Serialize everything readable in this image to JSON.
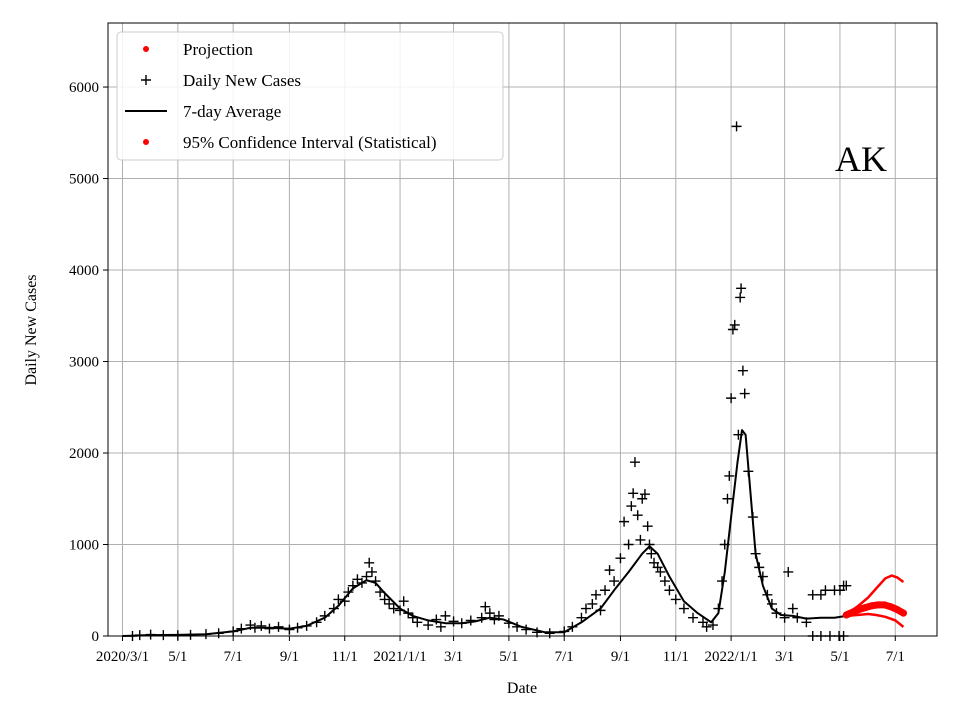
{
  "chart_data": {
    "type": "scatter",
    "title": "",
    "state_label": "AK",
    "xlabel": "Date",
    "ylabel": "Daily New Cases",
    "xlim": [
      "2020-02-14",
      "2022-08-16"
    ],
    "ylim": [
      0,
      6700
    ],
    "grid": true,
    "legend_position": "top-left",
    "x_ticks": [
      {
        "date": "2020-03-01",
        "label": "2020/3/1"
      },
      {
        "date": "2020-05-01",
        "label": "5/1"
      },
      {
        "date": "2020-07-01",
        "label": "7/1"
      },
      {
        "date": "2020-09-01",
        "label": "9/1"
      },
      {
        "date": "2020-11-01",
        "label": "11/1"
      },
      {
        "date": "2021-01-01",
        "label": "2021/1/1"
      },
      {
        "date": "2021-03-01",
        "label": "3/1"
      },
      {
        "date": "2021-05-01",
        "label": "5/1"
      },
      {
        "date": "2021-07-01",
        "label": "7/1"
      },
      {
        "date": "2021-09-01",
        "label": "9/1"
      },
      {
        "date": "2021-11-01",
        "label": "11/1"
      },
      {
        "date": "2022-01-01",
        "label": "2022/1/1"
      },
      {
        "date": "2022-03-01",
        "label": "3/1"
      },
      {
        "date": "2022-05-01",
        "label": "5/1"
      },
      {
        "date": "2022-07-01",
        "label": "7/1"
      }
    ],
    "y_ticks": [
      0,
      1000,
      2000,
      3000,
      4000,
      5000,
      6000
    ],
    "legend": [
      {
        "label": "Projection",
        "marker": "dot",
        "color": "#ff0000"
      },
      {
        "label": "Daily New Cases",
        "marker": "plus",
        "color": "#000000"
      },
      {
        "label": "7-day Average",
        "marker": "line",
        "color": "#000000"
      },
      {
        "label": "95% Confidence Interval (Statistical)",
        "marker": "dot",
        "color": "#ff0000"
      }
    ],
    "series": [
      {
        "name": "Daily New Cases",
        "marker": "plus",
        "color": "#000000",
        "points": [
          [
            "2020-03-12",
            0
          ],
          [
            "2020-03-20",
            10
          ],
          [
            "2020-04-01",
            15
          ],
          [
            "2020-04-15",
            10
          ],
          [
            "2020-05-01",
            8
          ],
          [
            "2020-05-15",
            12
          ],
          [
            "2020-06-01",
            20
          ],
          [
            "2020-06-15",
            30
          ],
          [
            "2020-07-01",
            50
          ],
          [
            "2020-07-10",
            80
          ],
          [
            "2020-07-20",
            120
          ],
          [
            "2020-07-25",
            90
          ],
          [
            "2020-08-01",
            110
          ],
          [
            "2020-08-10",
            80
          ],
          [
            "2020-08-20",
            100
          ],
          [
            "2020-09-01",
            70
          ],
          [
            "2020-09-10",
            90
          ],
          [
            "2020-09-20",
            110
          ],
          [
            "2020-10-01",
            150
          ],
          [
            "2020-10-10",
            220
          ],
          [
            "2020-10-20",
            300
          ],
          [
            "2020-10-25",
            400
          ],
          [
            "2020-11-01",
            380
          ],
          [
            "2020-11-05",
            480
          ],
          [
            "2020-11-10",
            550
          ],
          [
            "2020-11-15",
            620
          ],
          [
            "2020-11-20",
            580
          ],
          [
            "2020-11-25",
            650
          ],
          [
            "2020-11-28",
            800
          ],
          [
            "2020-12-01",
            700
          ],
          [
            "2020-12-05",
            600
          ],
          [
            "2020-12-10",
            480
          ],
          [
            "2020-12-15",
            400
          ],
          [
            "2020-12-20",
            350
          ],
          [
            "2020-12-25",
            300
          ],
          [
            "2021-01-01",
            280
          ],
          [
            "2021-01-05",
            380
          ],
          [
            "2021-01-10",
            250
          ],
          [
            "2021-01-15",
            200
          ],
          [
            "2021-01-20",
            150
          ],
          [
            "2021-02-01",
            120
          ],
          [
            "2021-02-10",
            180
          ],
          [
            "2021-02-15",
            100
          ],
          [
            "2021-02-20",
            220
          ],
          [
            "2021-03-01",
            160
          ],
          [
            "2021-03-10",
            140
          ],
          [
            "2021-03-20",
            170
          ],
          [
            "2021-04-01",
            200
          ],
          [
            "2021-04-05",
            320
          ],
          [
            "2021-04-10",
            250
          ],
          [
            "2021-04-15",
            180
          ],
          [
            "2021-04-20",
            220
          ],
          [
            "2021-05-01",
            140
          ],
          [
            "2021-05-10",
            100
          ],
          [
            "2021-05-20",
            70
          ],
          [
            "2021-06-01",
            40
          ],
          [
            "2021-06-15",
            30
          ],
          [
            "2021-07-01",
            50
          ],
          [
            "2021-07-10",
            100
          ],
          [
            "2021-07-20",
            200
          ],
          [
            "2021-07-25",
            300
          ],
          [
            "2021-08-01",
            350
          ],
          [
            "2021-08-05",
            450
          ],
          [
            "2021-08-10",
            280
          ],
          [
            "2021-08-15",
            500
          ],
          [
            "2021-08-20",
            720
          ],
          [
            "2021-08-25",
            600
          ],
          [
            "2021-09-01",
            850
          ],
          [
            "2021-09-05",
            1250
          ],
          [
            "2021-09-10",
            1000
          ],
          [
            "2021-09-13",
            1420
          ],
          [
            "2021-09-15",
            1560
          ],
          [
            "2021-09-17",
            1900
          ],
          [
            "2021-09-20",
            1320
          ],
          [
            "2021-09-23",
            1050
          ],
          [
            "2021-09-25",
            1500
          ],
          [
            "2021-09-28",
            1550
          ],
          [
            "2021-10-01",
            1200
          ],
          [
            "2021-10-03",
            1000
          ],
          [
            "2021-10-05",
            900
          ],
          [
            "2021-10-08",
            800
          ],
          [
            "2021-10-12",
            750
          ],
          [
            "2021-10-15",
            700
          ],
          [
            "2021-10-20",
            600
          ],
          [
            "2021-10-25",
            500
          ],
          [
            "2021-11-01",
            400
          ],
          [
            "2021-11-10",
            300
          ],
          [
            "2021-11-20",
            200
          ],
          [
            "2021-12-01",
            150
          ],
          [
            "2021-12-05",
            100
          ],
          [
            "2021-12-12",
            120
          ],
          [
            "2021-12-18",
            300
          ],
          [
            "2021-12-22",
            600
          ],
          [
            "2021-12-25",
            1000
          ],
          [
            "2021-12-28",
            1500
          ],
          [
            "2021-12-30",
            1750
          ],
          [
            "2022-01-01",
            2600
          ],
          [
            "2022-01-03",
            3350
          ],
          [
            "2022-01-05",
            3400
          ],
          [
            "2022-01-07",
            5570
          ],
          [
            "2022-01-09",
            2200
          ],
          [
            "2022-01-11",
            3700
          ],
          [
            "2022-01-12",
            3800
          ],
          [
            "2022-01-14",
            2900
          ],
          [
            "2022-01-16",
            2650
          ],
          [
            "2022-01-20",
            1800
          ],
          [
            "2022-01-25",
            1300
          ],
          [
            "2022-01-28",
            900
          ],
          [
            "2022-02-01",
            750
          ],
          [
            "2022-02-05",
            650
          ],
          [
            "2022-02-10",
            450
          ],
          [
            "2022-02-15",
            350
          ],
          [
            "2022-02-20",
            250
          ],
          [
            "2022-03-01",
            200
          ],
          [
            "2022-03-05",
            700
          ],
          [
            "2022-03-10",
            300
          ],
          [
            "2022-03-15",
            200
          ],
          [
            "2022-03-25",
            150
          ],
          [
            "2022-04-01",
            450
          ],
          [
            "2022-04-10",
            450
          ],
          [
            "2022-04-15",
            500
          ],
          [
            "2022-04-25",
            500
          ],
          [
            "2022-05-01",
            500
          ],
          [
            "2022-05-05",
            550
          ],
          [
            "2022-05-08",
            550
          ],
          [
            "2022-04-01",
            0
          ],
          [
            "2022-04-10",
            0
          ],
          [
            "2022-04-20",
            0
          ],
          [
            "2022-04-30",
            0
          ],
          [
            "2022-05-05",
            0
          ]
        ]
      },
      {
        "name": "7-day Average",
        "marker": "line",
        "color": "#000000",
        "points": [
          [
            "2020-03-01",
            0
          ],
          [
            "2020-04-01",
            10
          ],
          [
            "2020-05-01",
            12
          ],
          [
            "2020-06-01",
            20
          ],
          [
            "2020-07-01",
            50
          ],
          [
            "2020-07-20",
            90
          ],
          [
            "2020-08-10",
            90
          ],
          [
            "2020-09-01",
            80
          ],
          [
            "2020-09-20",
            110
          ],
          [
            "2020-10-10",
            200
          ],
          [
            "2020-10-25",
            330
          ],
          [
            "2020-11-10",
            520
          ],
          [
            "2020-11-25",
            610
          ],
          [
            "2020-12-05",
            580
          ],
          [
            "2020-12-15",
            470
          ],
          [
            "2021-01-01",
            300
          ],
          [
            "2021-01-15",
            220
          ],
          [
            "2021-02-01",
            170
          ],
          [
            "2021-02-20",
            140
          ],
          [
            "2021-03-10",
            140
          ],
          [
            "2021-03-25",
            160
          ],
          [
            "2021-04-10",
            200
          ],
          [
            "2021-04-25",
            180
          ],
          [
            "2021-05-15",
            100
          ],
          [
            "2021-06-10",
            40
          ],
          [
            "2021-07-01",
            40
          ],
          [
            "2021-07-20",
            150
          ],
          [
            "2021-08-10",
            300
          ],
          [
            "2021-08-25",
            500
          ],
          [
            "2021-09-10",
            700
          ],
          [
            "2021-09-25",
            900
          ],
          [
            "2021-10-03",
            980
          ],
          [
            "2021-10-12",
            900
          ],
          [
            "2021-10-25",
            650
          ],
          [
            "2021-11-10",
            380
          ],
          [
            "2021-11-25",
            250
          ],
          [
            "2021-12-10",
            150
          ],
          [
            "2021-12-18",
            250
          ],
          [
            "2021-12-25",
            700
          ],
          [
            "2022-01-01",
            1300
          ],
          [
            "2022-01-08",
            1900
          ],
          [
            "2022-01-13",
            2250
          ],
          [
            "2022-01-17",
            2200
          ],
          [
            "2022-01-22",
            1600
          ],
          [
            "2022-01-28",
            900
          ],
          [
            "2022-02-05",
            550
          ],
          [
            "2022-02-15",
            300
          ],
          [
            "2022-02-25",
            230
          ],
          [
            "2022-03-10",
            220
          ],
          [
            "2022-03-25",
            190
          ],
          [
            "2022-04-10",
            200
          ],
          [
            "2022-04-25",
            200
          ],
          [
            "2022-05-08",
            220
          ]
        ]
      },
      {
        "name": "Projection",
        "marker": "dot",
        "color": "#ff0000",
        "points": [
          [
            "2022-05-08",
            230
          ],
          [
            "2022-05-15",
            260
          ],
          [
            "2022-05-22",
            290
          ],
          [
            "2022-05-29",
            310
          ],
          [
            "2022-06-05",
            330
          ],
          [
            "2022-06-12",
            340
          ],
          [
            "2022-06-19",
            340
          ],
          [
            "2022-06-26",
            320
          ],
          [
            "2022-07-03",
            290
          ],
          [
            "2022-07-10",
            250
          ]
        ]
      },
      {
        "name": "95% Confidence Interval (Statistical)",
        "marker": "dot",
        "color": "#ff0000",
        "upper": [
          [
            "2022-05-08",
            240
          ],
          [
            "2022-05-20",
            320
          ],
          [
            "2022-06-01",
            420
          ],
          [
            "2022-06-10",
            520
          ],
          [
            "2022-06-20",
            630
          ],
          [
            "2022-06-27",
            660
          ],
          [
            "2022-07-03",
            640
          ],
          [
            "2022-07-10",
            590
          ]
        ],
        "lower": [
          [
            "2022-05-08",
            220
          ],
          [
            "2022-05-20",
            230
          ],
          [
            "2022-06-01",
            240
          ],
          [
            "2022-06-10",
            230
          ],
          [
            "2022-06-20",
            210
          ],
          [
            "2022-07-01",
            170
          ],
          [
            "2022-07-10",
            100
          ]
        ]
      }
    ]
  }
}
